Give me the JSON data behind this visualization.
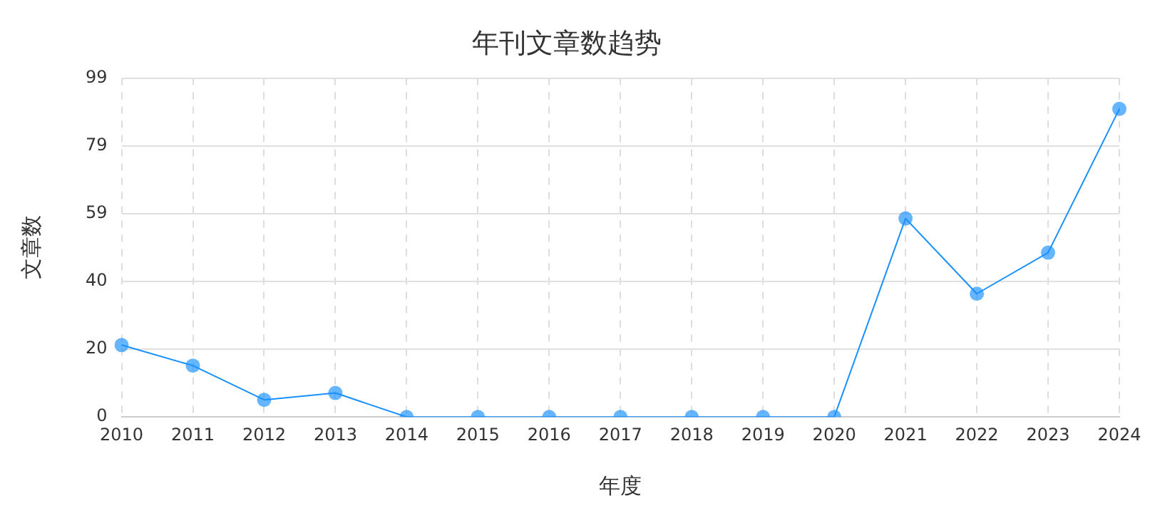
{
  "chart_data": {
    "type": "line",
    "title": "年刊文章数趋势",
    "xlabel": "年度",
    "ylabel": "文章数",
    "categories": [
      "2010",
      "2011",
      "2012",
      "2013",
      "2014",
      "2015",
      "2016",
      "2017",
      "2018",
      "2019",
      "2020",
      "2021",
      "2022",
      "2023",
      "2024"
    ],
    "series": [
      {
        "color": "#1890ff",
        "values": [
          21,
          15,
          5,
          7,
          0,
          0,
          0,
          0,
          0,
          0,
          0,
          58,
          36,
          48,
          90
        ]
      }
    ],
    "ylim": [
      0,
      99
    ],
    "yticks": [
      0,
      {
        "value": 19.8,
        "label": "20"
      },
      {
        "value": 39.6,
        "label": "40"
      },
      {
        "value": 59.4,
        "label": "59"
      },
      {
        "value": 79.2,
        "label": "79"
      },
      99
    ],
    "grid": true,
    "marker": "circle",
    "line_style": "solid",
    "legend": false
  }
}
